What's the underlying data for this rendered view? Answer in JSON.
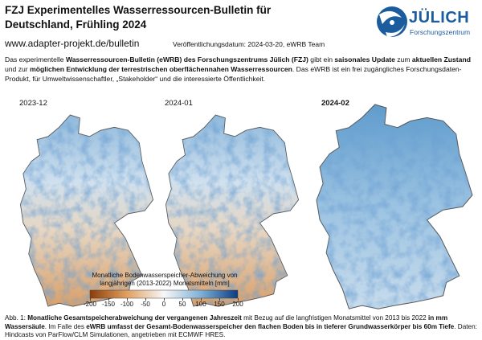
{
  "header": {
    "title_lines": [
      "FZJ Experimentelles Wasserressourcen-Bulletin für",
      "Deutschland, Frühling 2024"
    ],
    "url": "www.adapter-projekt.de/bulletin",
    "publication": "Veröffentlichungsdatum: 2024-03-20, eWRB Team",
    "logo": {
      "name": "JÜLICH",
      "subtitle": "Forschungszentrum"
    }
  },
  "intro": [
    {
      "text": "Das experimentelle ",
      "bold": false
    },
    {
      "text": "Wasserressourcen-Bulletin (eWRB) des Forschungszentrums Jülich (FZJ)",
      "bold": true
    },
    {
      "text": " gibt ein ",
      "bold": false
    },
    {
      "text": "saisonales Update",
      "bold": true
    },
    {
      "text": " zum ",
      "bold": false
    },
    {
      "text": "aktuellen Zustand",
      "bold": true
    },
    {
      "text": " und zur ",
      "bold": false
    },
    {
      "text": "möglichen Entwicklung der terrestrischen oberflächennahen Wasserressourcen",
      "bold": true
    },
    {
      "text": ". Das eWRB ist ein frei zugängliches Forschungsdaten-Produkt, für Umweltwissenschaftler, „Stakeholder“ und die interessierte Öffentlichkeit.",
      "bold": false
    }
  ],
  "maps": [
    {
      "label": "2023-12",
      "bold": false
    },
    {
      "label": "2024-01",
      "bold": false
    },
    {
      "label": "2024-02",
      "bold": true
    }
  ],
  "colorbar": {
    "title_lines": [
      "Monatliche Bodenwasserspeicher-Abweichung von",
      "langjährigen (2013-2022) Monatsmitteln [mm]"
    ],
    "ticks": [
      -200,
      -150,
      -100,
      -50,
      0,
      50,
      100,
      150,
      200
    ]
  },
  "caption": [
    {
      "text": "Abb. 1: ",
      "bold": false
    },
    {
      "text": "Monatliche Gesamtspeicherabweichung der vergangenen Jahreszeit",
      "bold": true
    },
    {
      "text": " mit Bezug auf die langfristigen Monatsmittel von 2013 bis 2022 ",
      "bold": false
    },
    {
      "text": "in mm Wassersäule",
      "bold": true
    },
    {
      "text": ". Im Falle des ",
      "bold": false
    },
    {
      "text": "eWRB umfasst der Gesamt-Bodenwasserspeicher den flachen Boden bis in tieferer Grundwasserkörper bis 60m Tiefe",
      "bold": true
    },
    {
      "text": ". Daten: Hindcasts von ParFlow/CLM Simulationen, angetrieben mit ECMWF HRES.",
      "bold": false
    }
  ]
}
